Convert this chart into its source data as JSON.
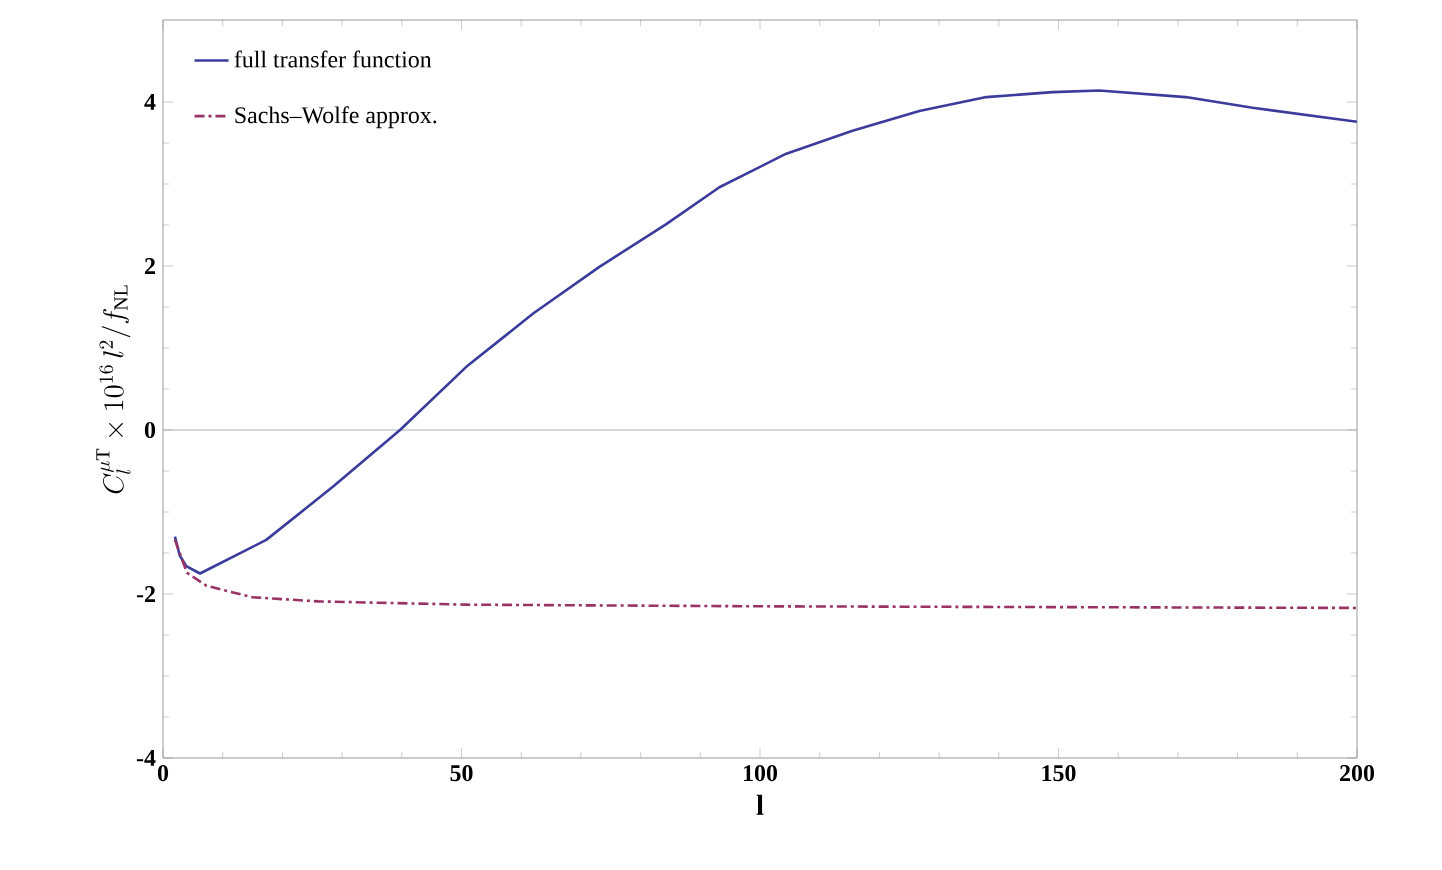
{
  "chart_data": {
    "type": "line",
    "xlabel": "l",
    "ylabel": "C_l^{\\mu\\mathrm{T}}\\times 10^{16}\\, l^{2}/f_{\\mathrm{NL}}",
    "xlim": [
      0,
      200
    ],
    "ylim": [
      -4,
      5
    ],
    "xticks": [
      0,
      50,
      100,
      150,
      200
    ],
    "yticks": [
      -4,
      -2,
      0,
      2,
      4
    ],
    "legend": "top left",
    "ref_lines": [
      {
        "axis": "y",
        "value": 0,
        "color": "#a0a0a0"
      }
    ],
    "series": [
      {
        "name": "full transfer function",
        "color": "#3b3b9c",
        "line_style": "solid",
        "x": [
          2,
          2.8,
          3.9,
          6.2,
          17.3,
          28.5,
          39.7,
          50.8,
          62,
          73.1,
          84.3,
          93.2,
          104.4,
          115.5,
          126.7,
          137.9,
          149,
          156.8,
          171.3,
          182.5,
          200
        ],
        "values": [
          -1.3,
          -1.53,
          -1.66,
          -1.75,
          -1.34,
          -0.69,
          0,
          0.77,
          1.42,
          1.99,
          2.51,
          2.96,
          3.37,
          3.65,
          3.89,
          4.06,
          4.12,
          4.14,
          4.06,
          3.93,
          3.76
        ]
      },
      {
        "name": "Sachs–Wolfe approx.",
        "color": "#993366",
        "line_style": "dashdot",
        "x": [
          2,
          4,
          7.3,
          15,
          26,
          50.8,
          100,
          150,
          200
        ],
        "values": [
          -1.34,
          -1.74,
          -1.9,
          -2.04,
          -2.09,
          -2.13,
          -2.15,
          -2.16,
          -2.17
        ]
      }
    ]
  }
}
